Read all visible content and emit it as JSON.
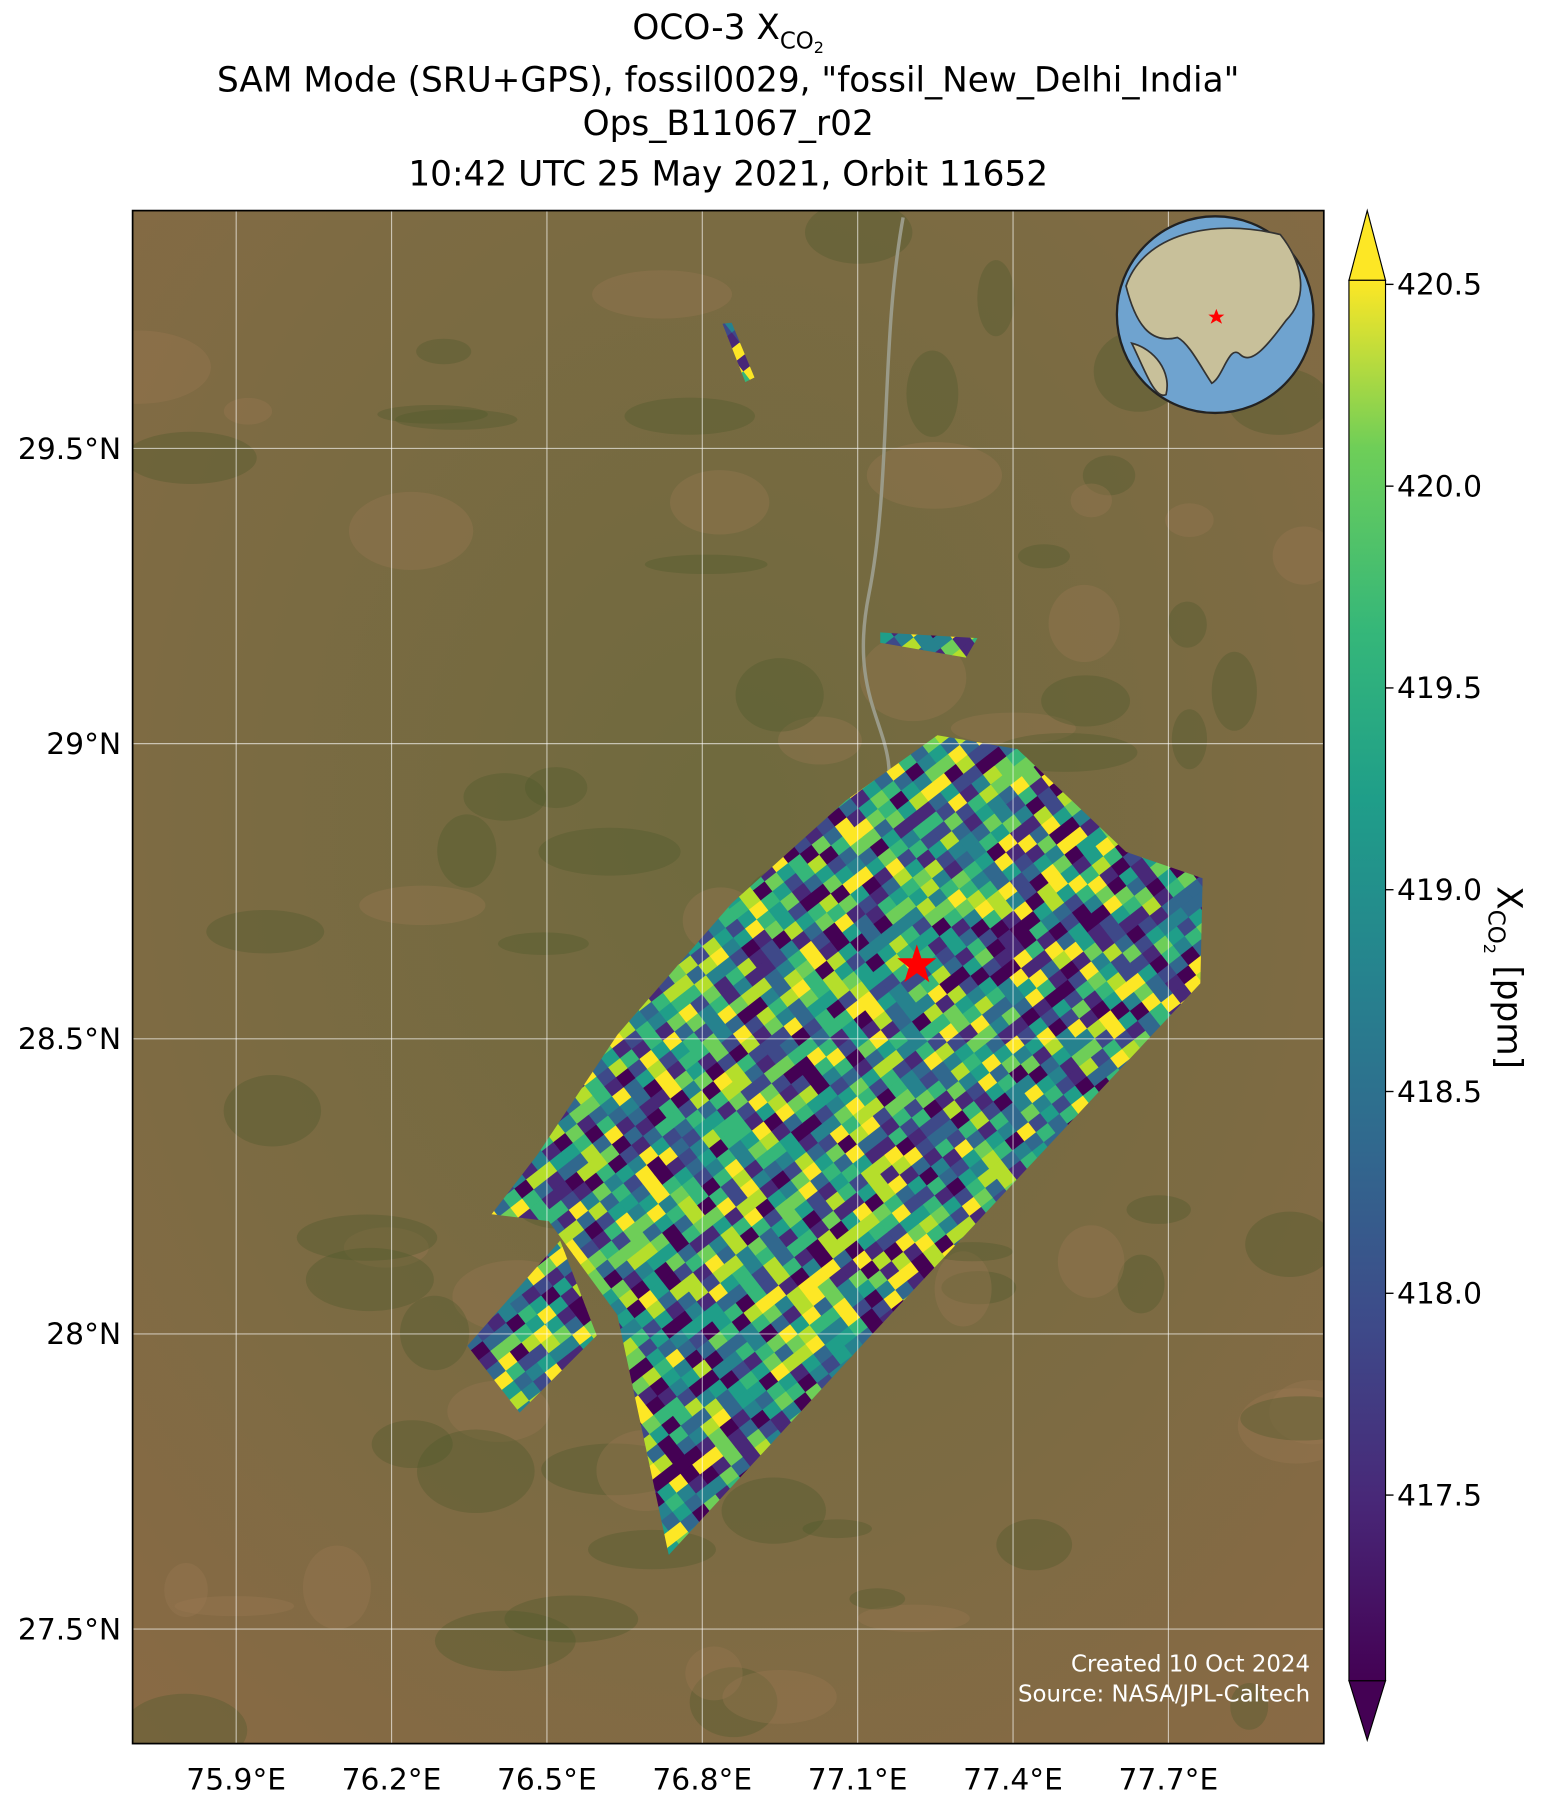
{
  "title": {
    "line1_main": "OCO-3 X",
    "line1_sub": "CO",
    "line1_subsub": "2",
    "line2": "SAM Mode (SRU+GPS), fossil0029, \"fossil_New_Delhi_India\"",
    "line3": "Ops_B11067_r02",
    "line4": "10:42 UTC 25 May 2021, Orbit 11652"
  },
  "map": {
    "xlim": [
      75.7,
      78.0
    ],
    "ylim": [
      27.306,
      29.903
    ],
    "lon_ticks": [
      {
        "value": 75.9,
        "label": "75.9°E"
      },
      {
        "value": 76.2,
        "label": "76.2°E"
      },
      {
        "value": 76.5,
        "label": "76.5°E"
      },
      {
        "value": 76.8,
        "label": "76.8°E"
      },
      {
        "value": 77.1,
        "label": "77.1°E"
      },
      {
        "value": 77.4,
        "label": "77.4°E"
      },
      {
        "value": 77.7,
        "label": "77.7°E"
      }
    ],
    "lat_ticks": [
      {
        "value": 27.5,
        "label": "27.5°N"
      },
      {
        "value": 28,
        "label": "28°N"
      },
      {
        "value": 28.5,
        "label": "28.5°N"
      },
      {
        "value": 29,
        "label": "29°N"
      },
      {
        "value": 29.5,
        "label": "29.5°N"
      }
    ],
    "grid": true
  },
  "colorbar": {
    "clim": [
      417.04,
      420.51
    ],
    "ticks": [
      417.5,
      {
        "value": 418,
        "label": "418.0"
      },
      418.5,
      {
        "value": 419,
        "label": "419.0"
      },
      419.5,
      {
        "value": 420,
        "label": "420.0"
      },
      420.5
    ],
    "label_main": "X",
    "label_sub": "CO",
    "label_subsub": "2",
    "label_unit": "[ppm]"
  },
  "credits": [
    "Created 10 Oct 2024",
    "Source: NASA/JPL-Caltech"
  ]
}
